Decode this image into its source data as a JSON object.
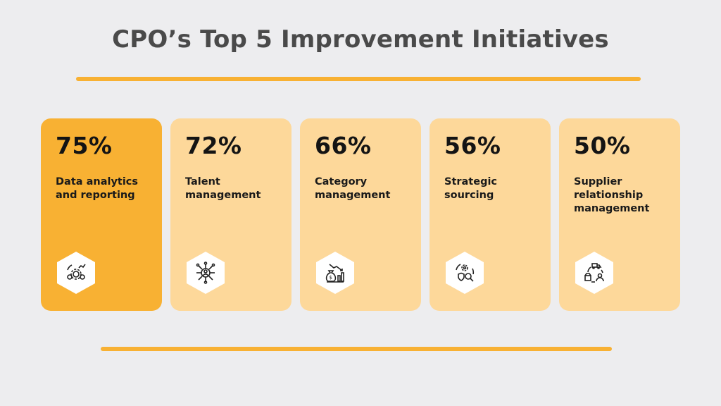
{
  "title": "CPO’s Top 5 Improvement Initiatives",
  "colors": {
    "accent": "#f8b133",
    "card": "#fdd89a",
    "background": "#ededef"
  },
  "cards": [
    {
      "percent": "75%",
      "label": "Data analytics and reporting",
      "icon": "gears-analytics-icon",
      "highlight": true
    },
    {
      "percent": "72%",
      "label": "Talent management",
      "icon": "network-person-icon",
      "highlight": false
    },
    {
      "percent": "66%",
      "label": "Category management",
      "icon": "money-bag-chart-icon",
      "highlight": false
    },
    {
      "percent": "56%",
      "label": "Strategic sourcing",
      "icon": "gear-search-cycle-icon",
      "highlight": false
    },
    {
      "percent": "50%",
      "label": "Supplier relationship management",
      "icon": "supplier-cycle-icon",
      "highlight": false
    }
  ]
}
